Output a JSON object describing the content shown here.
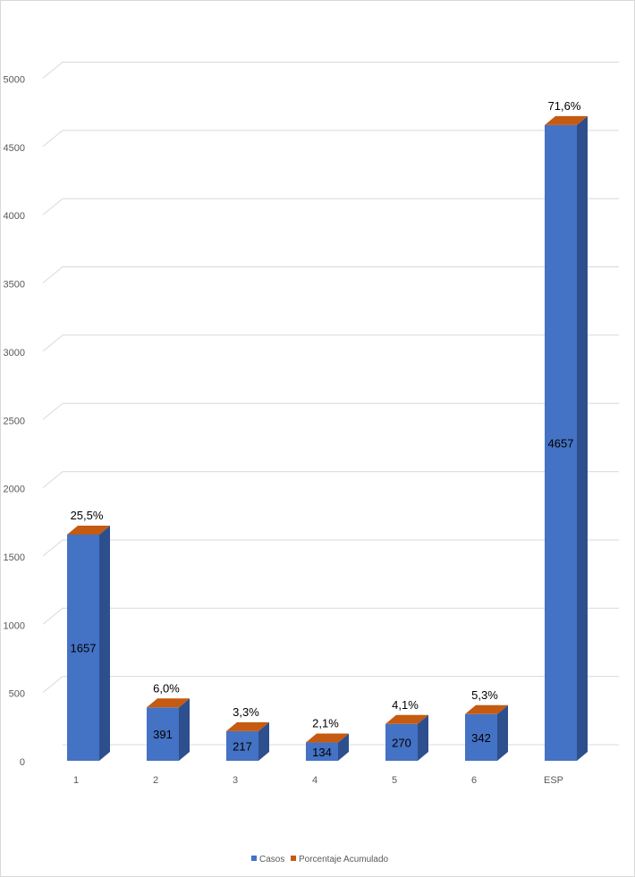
{
  "chart_data": {
    "type": "bar",
    "title": "",
    "xlabel": "",
    "ylabel": "",
    "categories": [
      "1",
      "2",
      "3",
      "4",
      "5",
      "6",
      "ESP"
    ],
    "ylim": [
      0,
      5000
    ],
    "ytick_labels": [
      "0",
      "500",
      "1000",
      "1500",
      "2000",
      "2500",
      "3000",
      "3500",
      "4000",
      "4500",
      "5000"
    ],
    "grid": true,
    "legend_position": "bottom",
    "series": [
      {
        "name": "Casos",
        "color": "#4472c4",
        "values": [
          1657,
          391,
          217,
          134,
          270,
          342,
          4657
        ],
        "data_labels": [
          "1657",
          "391",
          "217",
          "134",
          "270",
          "342",
          "4657"
        ]
      },
      {
        "name": "Porcentaje Acumulado",
        "color": "#c55a11",
        "values": [
          25.5,
          6.0,
          3.3,
          2.1,
          4.1,
          5.3,
          71.6
        ],
        "data_labels": [
          "25,5%",
          "6,0%",
          "3,3%",
          "2,1%",
          "4,1%",
          "5,3%",
          "71,6%"
        ]
      }
    ]
  }
}
